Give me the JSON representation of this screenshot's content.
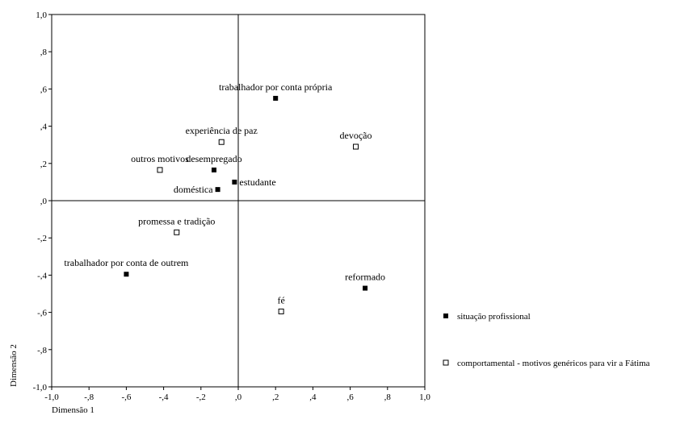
{
  "chart_data": {
    "type": "scatter",
    "xlabel": "Dimensão 1",
    "ylabel": "Dimensão 2",
    "xlim": [
      -1.0,
      1.0
    ],
    "ylim": [
      -1.0,
      1.0
    ],
    "x_ticks": [
      {
        "value": -1.0,
        "label": "-1,0"
      },
      {
        "value": -0.8,
        "label": "-,8"
      },
      {
        "value": -0.6,
        "label": "-,6"
      },
      {
        "value": -0.4,
        "label": "-,4"
      },
      {
        "value": -0.2,
        "label": "-,2"
      },
      {
        "value": 0.0,
        "label": ",0"
      },
      {
        "value": 0.2,
        "label": ",2"
      },
      {
        "value": 0.4,
        "label": ",4"
      },
      {
        "value": 0.6,
        "label": ",6"
      },
      {
        "value": 0.8,
        "label": ",8"
      },
      {
        "value": 1.0,
        "label": "1,0"
      }
    ],
    "y_ticks": [
      {
        "value": 1.0,
        "label": "1,0"
      },
      {
        "value": 0.8,
        "label": ",8"
      },
      {
        "value": 0.6,
        "label": ",6"
      },
      {
        "value": 0.4,
        "label": ",4"
      },
      {
        "value": 0.2,
        "label": ",2"
      },
      {
        "value": 0.0,
        "label": ",0"
      },
      {
        "value": -0.2,
        "label": "-,2"
      },
      {
        "value": -0.4,
        "label": "-,4"
      },
      {
        "value": -0.6,
        "label": "-,6"
      },
      {
        "value": -0.8,
        "label": "-,8"
      },
      {
        "value": -1.0,
        "label": "-1,0"
      }
    ],
    "reference_lines": {
      "x": 0,
      "y": 0
    },
    "legend_position": "right",
    "series": [
      {
        "name": "situação profissional",
        "marker": "filled-square",
        "color": "#000000",
        "points": [
          {
            "label": "trabalhador por conta própria",
            "x": 0.2,
            "y": 0.55,
            "label_pos": "above"
          },
          {
            "label": "desempregado",
            "x": -0.13,
            "y": 0.165,
            "label_pos": "above"
          },
          {
            "label": "estudante",
            "x": -0.02,
            "y": 0.1,
            "label_pos": "right"
          },
          {
            "label": "doméstica",
            "x": -0.11,
            "y": 0.06,
            "label_pos": "left"
          },
          {
            "label": "trabalhador por conta de outrem",
            "x": -0.6,
            "y": -0.395,
            "label_pos": "above"
          },
          {
            "label": "reformado",
            "x": 0.68,
            "y": -0.47,
            "label_pos": "above"
          }
        ]
      },
      {
        "name": "comportamental - motivos genéricos para vir a Fátima",
        "marker": "open-square",
        "color": "#000000",
        "points": [
          {
            "label": "experiência de paz",
            "x": -0.09,
            "y": 0.315,
            "label_pos": "above"
          },
          {
            "label": "devoção",
            "x": 0.63,
            "y": 0.29,
            "label_pos": "above"
          },
          {
            "label": "outros motivos",
            "x": -0.42,
            "y": 0.165,
            "label_pos": "above"
          },
          {
            "label": "promessa e tradição",
            "x": -0.33,
            "y": -0.17,
            "label_pos": "above"
          },
          {
            "label": "fé",
            "x": 0.23,
            "y": -0.595,
            "label_pos": "above"
          }
        ]
      }
    ]
  }
}
